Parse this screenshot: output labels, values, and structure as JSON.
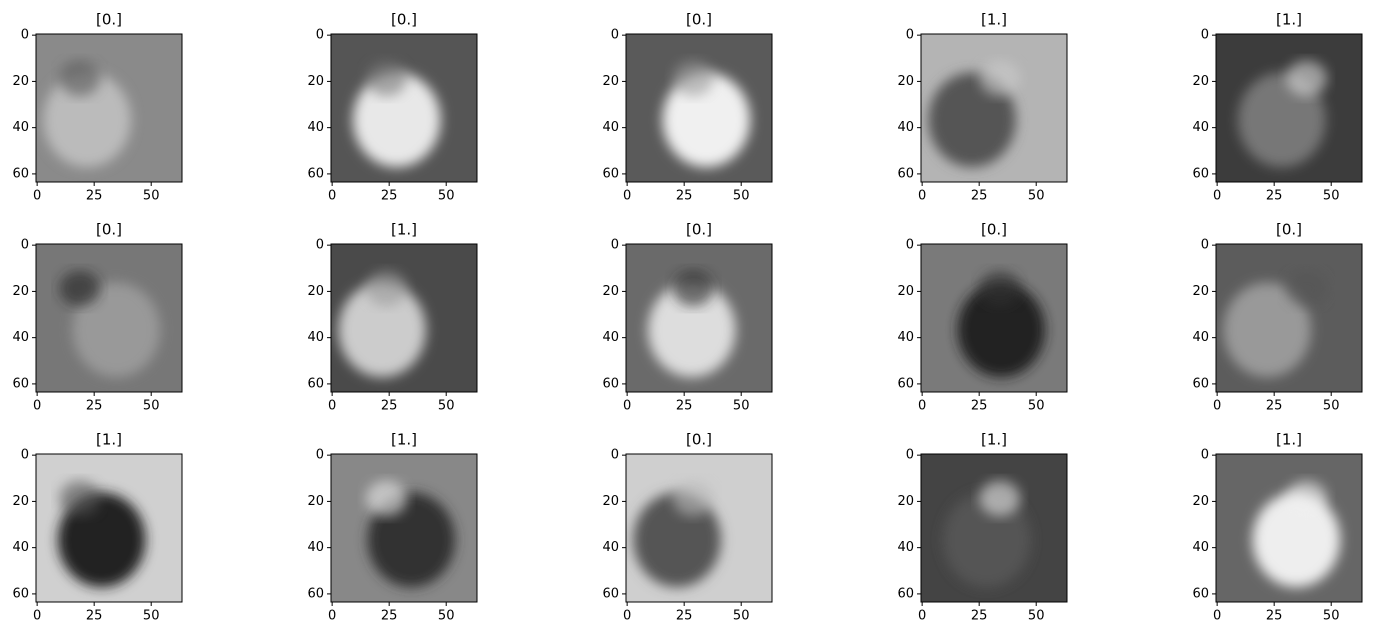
{
  "chart_data": [
    {
      "type": "image",
      "title": "[0.]",
      "xlim": [
        -0.5,
        63.5
      ],
      "ylim": [
        63.5,
        -0.5
      ],
      "xticks": [
        0,
        25,
        50
      ],
      "yticks": [
        0,
        20,
        40,
        60
      ]
    },
    {
      "type": "image",
      "title": "[0.]",
      "xlim": [
        -0.5,
        63.5
      ],
      "ylim": [
        63.5,
        -0.5
      ],
      "xticks": [
        0,
        25,
        50
      ],
      "yticks": [
        0,
        20,
        40,
        60
      ]
    },
    {
      "type": "image",
      "title": "[0.]",
      "xlim": [
        -0.5,
        63.5
      ],
      "ylim": [
        63.5,
        -0.5
      ],
      "xticks": [
        0,
        25,
        50
      ],
      "yticks": [
        0,
        20,
        40,
        60
      ]
    },
    {
      "type": "image",
      "title": "[1.]",
      "xlim": [
        -0.5,
        63.5
      ],
      "ylim": [
        63.5,
        -0.5
      ],
      "xticks": [
        0,
        25,
        50
      ],
      "yticks": [
        0,
        20,
        40,
        60
      ]
    },
    {
      "type": "image",
      "title": "[1.]",
      "xlim": [
        -0.5,
        63.5
      ],
      "ylim": [
        63.5,
        -0.5
      ],
      "xticks": [
        0,
        25,
        50
      ],
      "yticks": [
        0,
        20,
        40,
        60
      ]
    },
    {
      "type": "image",
      "title": "[0.]",
      "xlim": [
        -0.5,
        63.5
      ],
      "ylim": [
        63.5,
        -0.5
      ],
      "xticks": [
        0,
        25,
        50
      ],
      "yticks": [
        0,
        20,
        40,
        60
      ]
    },
    {
      "type": "image",
      "title": "[1.]",
      "xlim": [
        -0.5,
        63.5
      ],
      "ylim": [
        63.5,
        -0.5
      ],
      "xticks": [
        0,
        25,
        50
      ],
      "yticks": [
        0,
        20,
        40,
        60
      ]
    },
    {
      "type": "image",
      "title": "[0.]",
      "xlim": [
        -0.5,
        63.5
      ],
      "ylim": [
        63.5,
        -0.5
      ],
      "xticks": [
        0,
        25,
        50
      ],
      "yticks": [
        0,
        20,
        40,
        60
      ]
    },
    {
      "type": "image",
      "title": "[0.]",
      "xlim": [
        -0.5,
        63.5
      ],
      "ylim": [
        63.5,
        -0.5
      ],
      "xticks": [
        0,
        25,
        50
      ],
      "yticks": [
        0,
        20,
        40,
        60
      ]
    },
    {
      "type": "image",
      "title": "[0.]",
      "xlim": [
        -0.5,
        63.5
      ],
      "ylim": [
        63.5,
        -0.5
      ],
      "xticks": [
        0,
        25,
        50
      ],
      "yticks": [
        0,
        20,
        40,
        60
      ]
    },
    {
      "type": "image",
      "title": "[1.]",
      "xlim": [
        -0.5,
        63.5
      ],
      "ylim": [
        63.5,
        -0.5
      ],
      "xticks": [
        0,
        25,
        50
      ],
      "yticks": [
        0,
        20,
        40,
        60
      ]
    },
    {
      "type": "image",
      "title": "[1.]",
      "xlim": [
        -0.5,
        63.5
      ],
      "ylim": [
        63.5,
        -0.5
      ],
      "xticks": [
        0,
        25,
        50
      ],
      "yticks": [
        0,
        20,
        40,
        60
      ]
    },
    {
      "type": "image",
      "title": "[0.]",
      "xlim": [
        -0.5,
        63.5
      ],
      "ylim": [
        63.5,
        -0.5
      ],
      "xticks": [
        0,
        25,
        50
      ],
      "yticks": [
        0,
        20,
        40,
        60
      ]
    },
    {
      "type": "image",
      "title": "[1.]",
      "xlim": [
        -0.5,
        63.5
      ],
      "ylim": [
        63.5,
        -0.5
      ],
      "xticks": [
        0,
        25,
        50
      ],
      "yticks": [
        0,
        20,
        40,
        60
      ]
    },
    {
      "type": "image",
      "title": "[1.]",
      "xlim": [
        -0.5,
        63.5
      ],
      "ylim": [
        63.5,
        -0.5
      ],
      "xticks": [
        0,
        25,
        50
      ],
      "yticks": [
        0,
        20,
        40,
        60
      ]
    }
  ]
}
